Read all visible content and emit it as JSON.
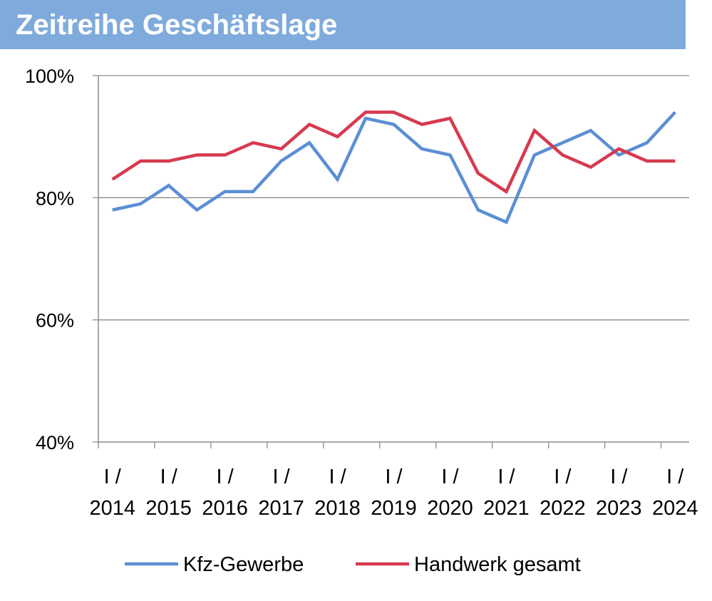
{
  "header": {
    "title": "Zeitreihe Geschäftslage",
    "background_color": "#7fabdc"
  },
  "chart_data": {
    "type": "line",
    "title": "Zeitreihe Geschäftslage",
    "xlabel": "",
    "ylabel": "",
    "ylim": [
      40,
      100
    ],
    "y_ticks": [
      "40%",
      "60%",
      "80%",
      "100%"
    ],
    "y_tick_values": [
      40,
      60,
      80,
      100
    ],
    "grid": true,
    "legend_position": "bottom",
    "x_labels": [
      {
        "index": 0,
        "line1": "I /",
        "line2": "2014"
      },
      {
        "index": 2,
        "line1": "I /",
        "line2": "2015"
      },
      {
        "index": 4,
        "line1": "I /",
        "line2": "2016"
      },
      {
        "index": 6,
        "line1": "I /",
        "line2": "2017"
      },
      {
        "index": 8,
        "line1": "I /",
        "line2": "2018"
      },
      {
        "index": 10,
        "line1": "I /",
        "line2": "2019"
      },
      {
        "index": 12,
        "line1": "I /",
        "line2": "2020"
      },
      {
        "index": 14,
        "line1": "I /",
        "line2": "2021"
      },
      {
        "index": 16,
        "line1": "I /",
        "line2": "2022"
      },
      {
        "index": 18,
        "line1": "I /",
        "line2": "2023"
      },
      {
        "index": 20,
        "line1": "I /",
        "line2": "2024"
      }
    ],
    "series": [
      {
        "name": "Kfz-Gewerbe",
        "color": "#5b8fd4",
        "values": [
          78,
          79,
          82,
          78,
          81,
          81,
          86,
          89,
          83,
          93,
          92,
          88,
          87,
          78,
          76,
          87,
          89,
          91,
          87,
          89,
          94
        ]
      },
      {
        "name": "Handwerk gesamt",
        "color": "#d63a4f",
        "values": [
          83,
          86,
          86,
          87,
          87,
          89,
          88,
          92,
          90,
          94,
          94,
          92,
          93,
          84,
          81,
          91,
          87,
          85,
          88,
          86,
          86
        ]
      }
    ]
  }
}
